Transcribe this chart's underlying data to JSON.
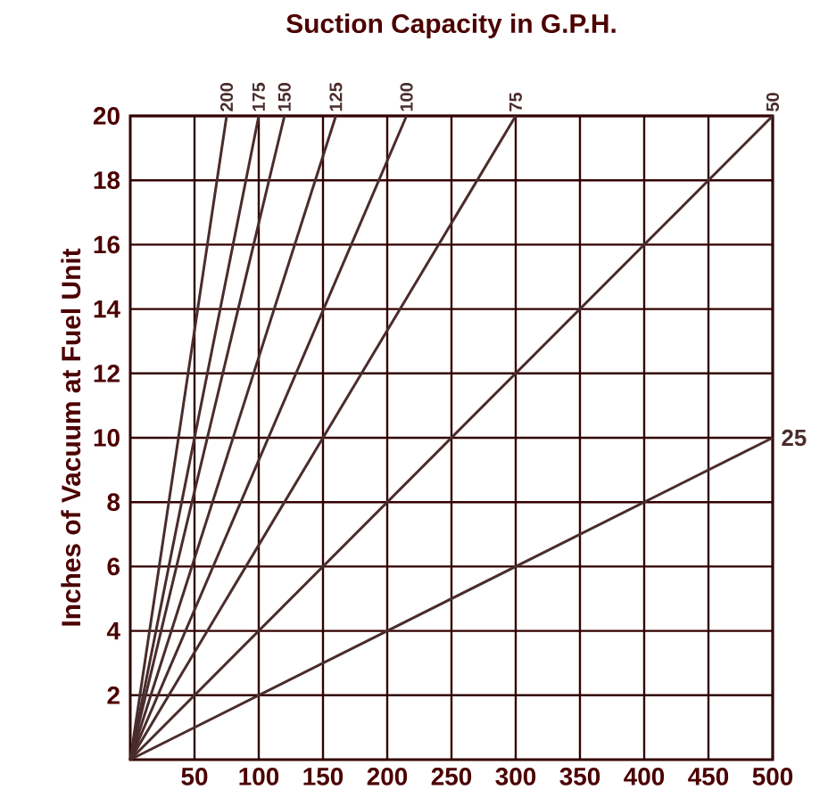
{
  "chart_data": {
    "type": "line",
    "title": "Suction Capacity in G.P.H.",
    "ylabel": "Inches of Vacuum at Fuel Unit",
    "xlim": [
      0,
      500
    ],
    "ylim": [
      0,
      20
    ],
    "xticks": [
      50,
      100,
      150,
      200,
      250,
      300,
      350,
      400,
      450,
      500
    ],
    "yticks": [
      2,
      4,
      6,
      8,
      10,
      12,
      14,
      16,
      18,
      20
    ],
    "grid": true,
    "marker": "none",
    "line_style": "solid",
    "series": [
      {
        "name": "200",
        "color": "#4a2c2c",
        "x": [
          0,
          75
        ],
        "values": [
          0,
          20
        ]
      },
      {
        "name": "175",
        "color": "#4a2c2c",
        "x": [
          0,
          100
        ],
        "values": [
          0,
          20
        ]
      },
      {
        "name": "150",
        "color": "#4a2c2c",
        "x": [
          0,
          120
        ],
        "values": [
          0,
          20
        ]
      },
      {
        "name": "125",
        "color": "#4a2c2c",
        "x": [
          0,
          160
        ],
        "values": [
          0,
          20
        ]
      },
      {
        "name": "100",
        "color": "#4a2c2c",
        "x": [
          0,
          215
        ],
        "values": [
          0,
          20
        ]
      },
      {
        "name": "75",
        "color": "#4a2c2c",
        "x": [
          0,
          300
        ],
        "values": [
          0,
          20
        ]
      },
      {
        "name": "50",
        "color": "#4a2c2c",
        "x": [
          0,
          500
        ],
        "values": [
          0,
          20
        ]
      },
      {
        "name": "25",
        "color": "#4a2c2c",
        "x": [
          0,
          500
        ],
        "values": [
          0,
          10
        ]
      }
    ]
  }
}
